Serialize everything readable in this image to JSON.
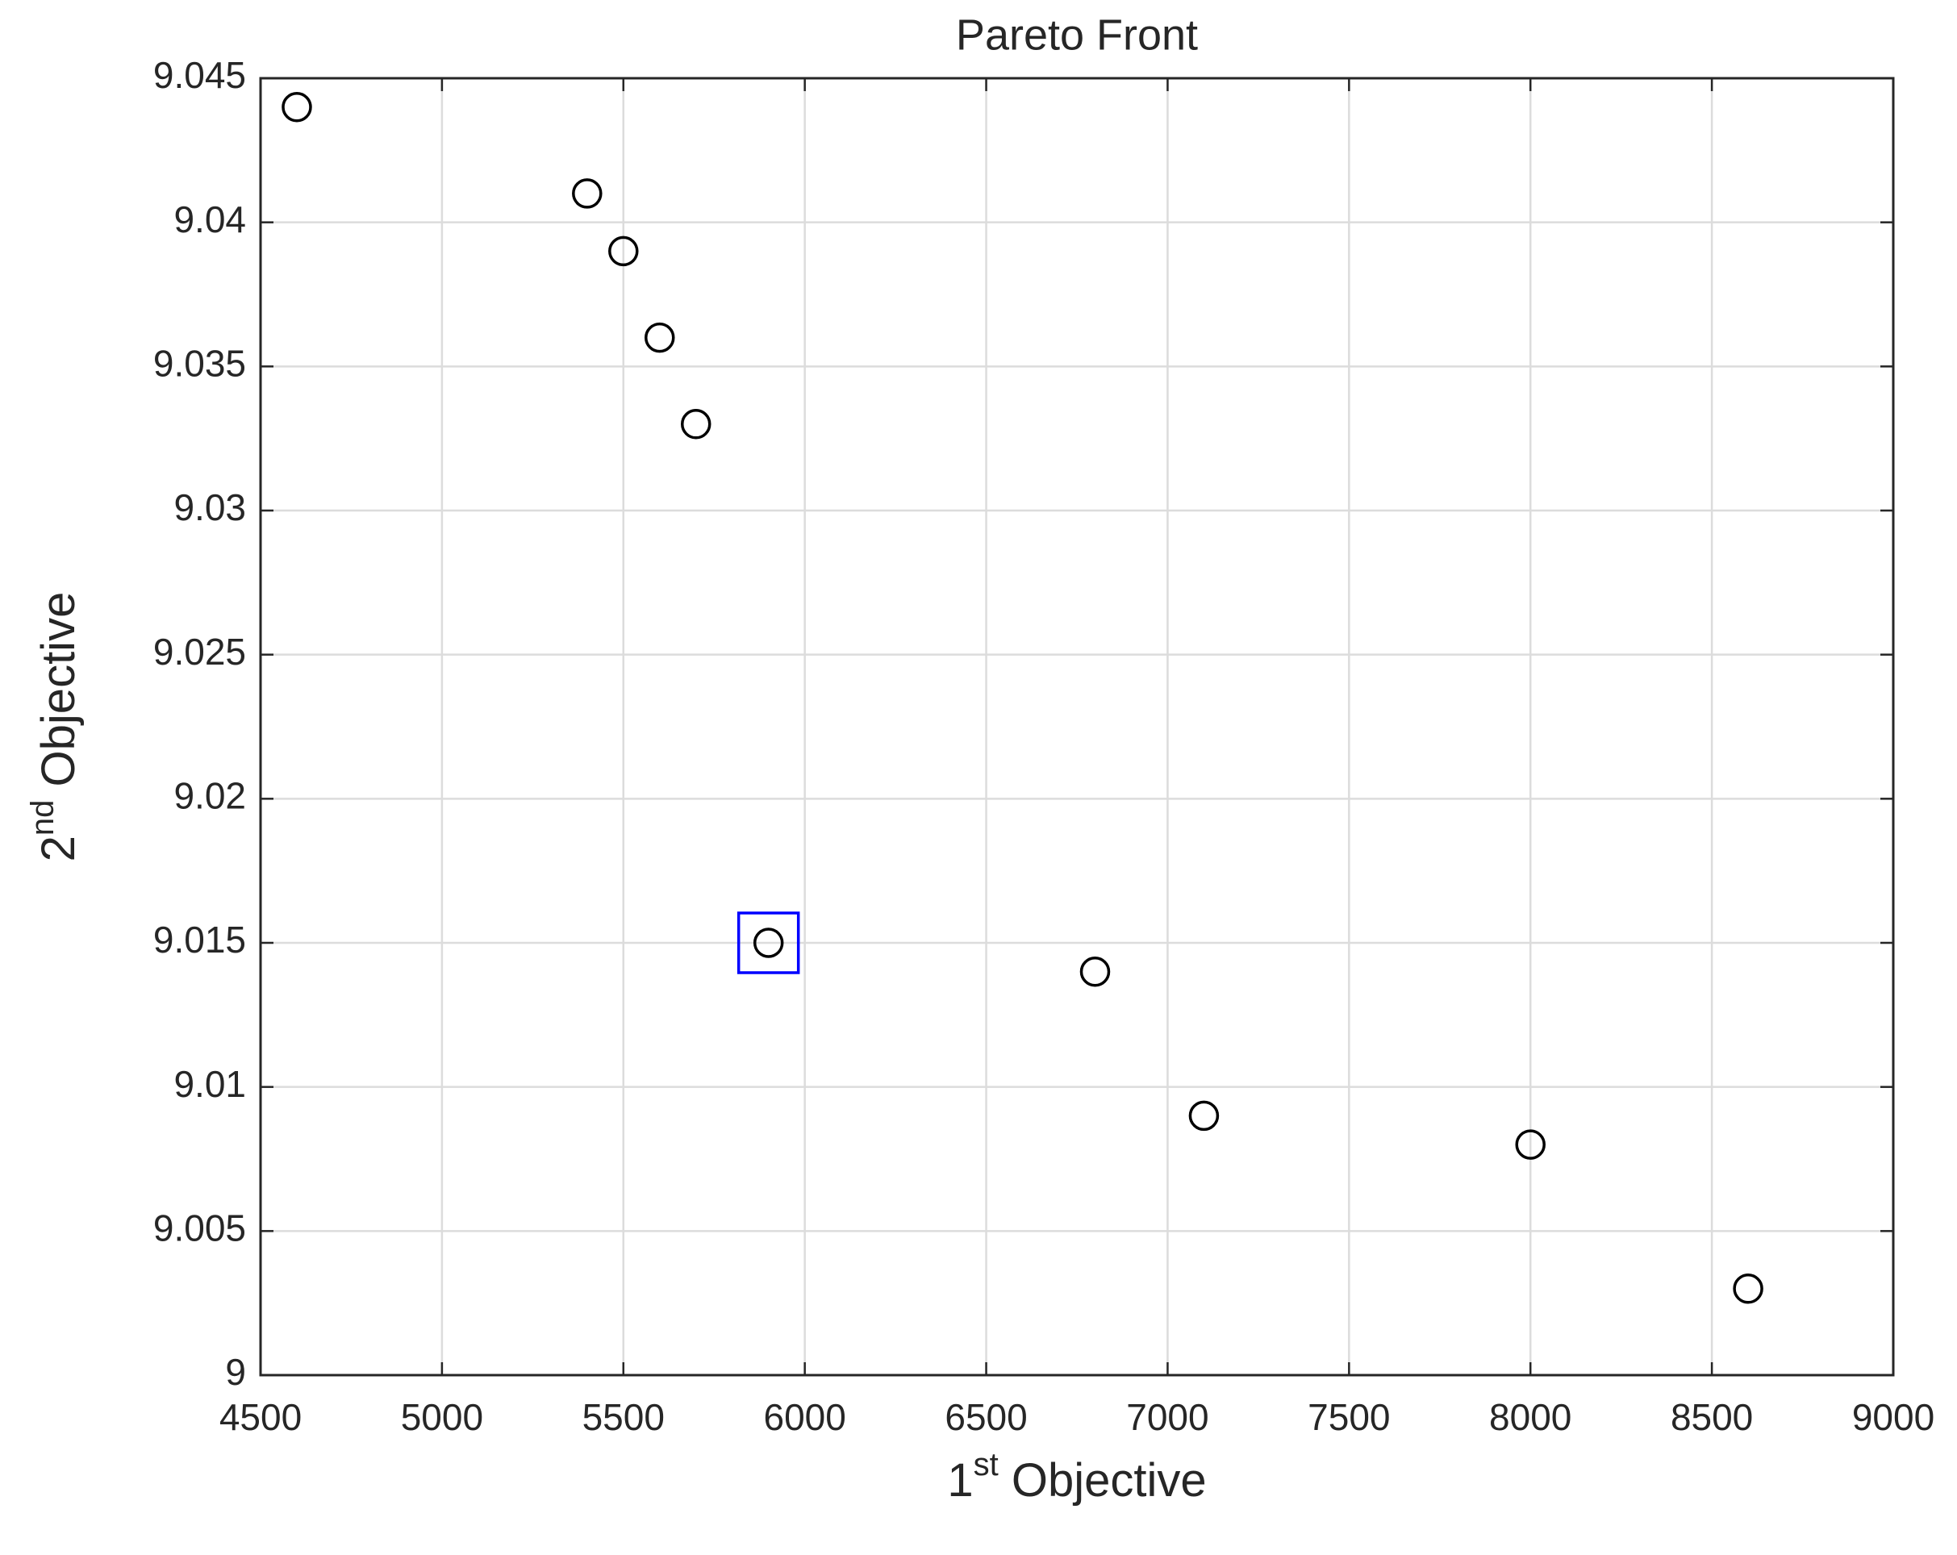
{
  "chart_data": {
    "type": "scatter",
    "title": "Pareto Front",
    "xlabel": [
      "1",
      "st",
      " Objective"
    ],
    "ylabel": [
      "2",
      "nd",
      " Objective"
    ],
    "x": [
      4600,
      5400,
      5500,
      5600,
      5700,
      5900,
      6800,
      7100,
      8000,
      8600
    ],
    "series": [
      {
        "color": "#000000",
        "values": [
          9.044,
          9.041,
          9.039,
          9.036,
          9.033,
          9.015,
          9.014,
          9.009,
          9.008,
          9.003
        ]
      }
    ],
    "highlight": {
      "x": 5900,
      "y": 9.015,
      "color": "#0000ff"
    },
    "xlim": [
      4500,
      9000
    ],
    "xticks": [
      4500,
      5000,
      5500,
      6000,
      6500,
      7000,
      7500,
      8000,
      8500,
      9000
    ],
    "ylim": [
      9,
      9.045
    ],
    "yticks": [
      9,
      9.005,
      9.01,
      9.015,
      9.02,
      9.025,
      9.03,
      9.035,
      9.04,
      9.045
    ],
    "grid": true
  }
}
